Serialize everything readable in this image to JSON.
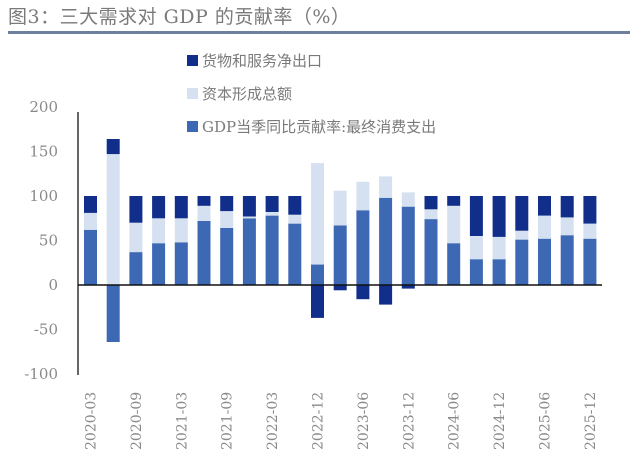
{
  "title": "图3：三大需求对 GDP 的贡献率（%）",
  "chart_data": {
    "type": "bar",
    "stacked": true,
    "title": "图3：三大需求对 GDP 的贡献率（%）",
    "xlabel": "",
    "ylabel": "",
    "ylim": [
      -100,
      200
    ],
    "yticks": [
      200,
      150,
      100,
      50,
      0,
      -50,
      -100
    ],
    "grid": false,
    "legend_position": "top-center",
    "categories": [
      "2020-03",
      "",
      "2020-09",
      "",
      "2021-03",
      "",
      "2021-09",
      "",
      "2022-03",
      "",
      "2022-12",
      "",
      "2023-06",
      "",
      "2023-12",
      "",
      "2024-06",
      "",
      "2024-12",
      "",
      "2025-06",
      "",
      "2025-12"
    ],
    "series": [
      {
        "name": "GDP当季同比贡献率:最终消费支出",
        "color": "#3d68b4",
        "values": [
          62,
          -64,
          37,
          47,
          48,
          72,
          64,
          75,
          78,
          69,
          23,
          67,
          84,
          98,
          88,
          74,
          47,
          29,
          29,
          51,
          52,
          56,
          52
        ]
      },
      {
        "name": "资本形成总额",
        "color": "#d5e0f0",
        "values": [
          19,
          147,
          33,
          28,
          27,
          17,
          19,
          2,
          4,
          10,
          114,
          39,
          32,
          24,
          16,
          11,
          42,
          26,
          25,
          10,
          26,
          20,
          17
        ]
      },
      {
        "name": "货物和服务净出口",
        "color": "#112e8a",
        "values": [
          19,
          17,
          30,
          25,
          25,
          11,
          17,
          23,
          18,
          21,
          -37,
          -6,
          -16,
          -22,
          -4,
          15,
          11,
          45,
          46,
          39,
          22,
          24,
          31
        ]
      }
    ],
    "legend": [
      "货物和服务净出口",
      "资本形成总额",
      "GDP当季同比贡献率:最终消费支出"
    ]
  }
}
